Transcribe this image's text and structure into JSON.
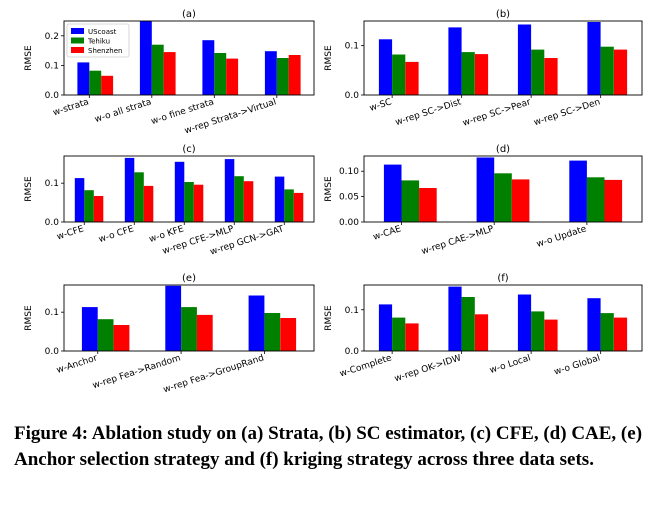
{
  "caption": "Figure 4: Ablation study on (a) Strata, (b) SC estimator, (c) CFE, (d) CAE, (e) Anchor selection strategy and (f) kriging strategy across three data sets.",
  "colors": {
    "UScoast": "#0000ff",
    "Tehiku": "#008000",
    "Shenzhen": "#ff0000"
  },
  "chart_data": [
    {
      "type": "bar",
      "title": "(a)",
      "ylabel": "RMSE",
      "ylim": [
        0,
        0.25
      ],
      "yticks": [
        "0.0",
        "0.1",
        "0.2"
      ],
      "ytick_values": [
        0,
        0.1,
        0.2
      ],
      "legend": [
        "UScoast",
        "Tehiku",
        "Shenzhen"
      ],
      "legend_position": "upper-left",
      "categories": [
        "w-strata",
        "w-o all strata",
        "w-o fine strata",
        "w-rep Strata->Virtual"
      ],
      "series": [
        {
          "name": "UScoast",
          "values": [
            0.11,
            0.25,
            0.185,
            0.148
          ]
        },
        {
          "name": "Tehiku",
          "values": [
            0.082,
            0.17,
            0.142,
            0.125
          ]
        },
        {
          "name": "Shenzhen",
          "values": [
            0.065,
            0.145,
            0.123,
            0.135
          ]
        }
      ]
    },
    {
      "type": "bar",
      "title": "(b)",
      "ylabel": "RMSE",
      "ylim": [
        0,
        0.15
      ],
      "yticks": [
        "0.0",
        "0.1"
      ],
      "ytick_values": [
        0,
        0.1
      ],
      "categories": [
        "w-SC",
        "w-rep SC->Dist",
        "w-rep SC->Pear",
        "w-rep SC->Den"
      ],
      "series": [
        {
          "name": "UScoast",
          "values": [
            0.113,
            0.137,
            0.143,
            0.148
          ]
        },
        {
          "name": "Tehiku",
          "values": [
            0.082,
            0.087,
            0.092,
            0.098
          ]
        },
        {
          "name": "Shenzhen",
          "values": [
            0.067,
            0.083,
            0.075,
            0.092
          ]
        }
      ]
    },
    {
      "type": "bar",
      "title": "(c)",
      "ylabel": "RMSE",
      "ylim": [
        0,
        0.17
      ],
      "yticks": [
        "0.0",
        "0.1"
      ],
      "ytick_values": [
        0,
        0.1
      ],
      "categories": [
        "w-CFE",
        "w-o CFE",
        "w-o KFE",
        "w-rep CFE->MLP",
        "w-rep GCN->GAT"
      ],
      "series": [
        {
          "name": "UScoast",
          "values": [
            0.113,
            0.165,
            0.155,
            0.162,
            0.117
          ]
        },
        {
          "name": "Tehiku",
          "values": [
            0.082,
            0.128,
            0.103,
            0.118,
            0.084
          ]
        },
        {
          "name": "Shenzhen",
          "values": [
            0.067,
            0.093,
            0.096,
            0.105,
            0.075
          ]
        }
      ]
    },
    {
      "type": "bar",
      "title": "(d)",
      "ylabel": "RMSE",
      "ylim": [
        0,
        0.13
      ],
      "yticks": [
        "0.00",
        "0.05",
        "0.10"
      ],
      "ytick_values": [
        0,
        0.05,
        0.1
      ],
      "categories": [
        "w-CAE",
        "w-rep CAE->MLP",
        "w-o Update"
      ],
      "series": [
        {
          "name": "UScoast",
          "values": [
            0.113,
            0.127,
            0.121
          ]
        },
        {
          "name": "Tehiku",
          "values": [
            0.082,
            0.096,
            0.088
          ]
        },
        {
          "name": "Shenzhen",
          "values": [
            0.067,
            0.084,
            0.083
          ]
        }
      ]
    },
    {
      "type": "bar",
      "title": "(e)",
      "ylabel": "RMSE",
      "ylim": [
        0,
        0.17
      ],
      "yticks": [
        "0.0",
        "0.1"
      ],
      "ytick_values": [
        0,
        0.1
      ],
      "categories": [
        "w-Anchor",
        "w-rep Fea->Random",
        "w-rep Fea->GroupRand"
      ],
      "series": [
        {
          "name": "UScoast",
          "values": [
            0.113,
            0.168,
            0.143
          ]
        },
        {
          "name": "Tehiku",
          "values": [
            0.082,
            0.113,
            0.098
          ]
        },
        {
          "name": "Shenzhen",
          "values": [
            0.067,
            0.093,
            0.085
          ]
        }
      ]
    },
    {
      "type": "bar",
      "title": "(f)",
      "ylabel": "RMSE",
      "ylim": [
        0,
        0.16
      ],
      "yticks": [
        "0.0",
        "0.1"
      ],
      "ytick_values": [
        0,
        0.1
      ],
      "categories": [
        "w-Complete",
        "w-rep OK->IDW",
        "w-o Local",
        "w-o Global"
      ],
      "series": [
        {
          "name": "UScoast",
          "values": [
            0.113,
            0.156,
            0.137,
            0.128
          ]
        },
        {
          "name": "Tehiku",
          "values": [
            0.081,
            0.131,
            0.096,
            0.092
          ]
        },
        {
          "name": "Shenzhen",
          "values": [
            0.067,
            0.089,
            0.076,
            0.081
          ]
        }
      ]
    }
  ]
}
